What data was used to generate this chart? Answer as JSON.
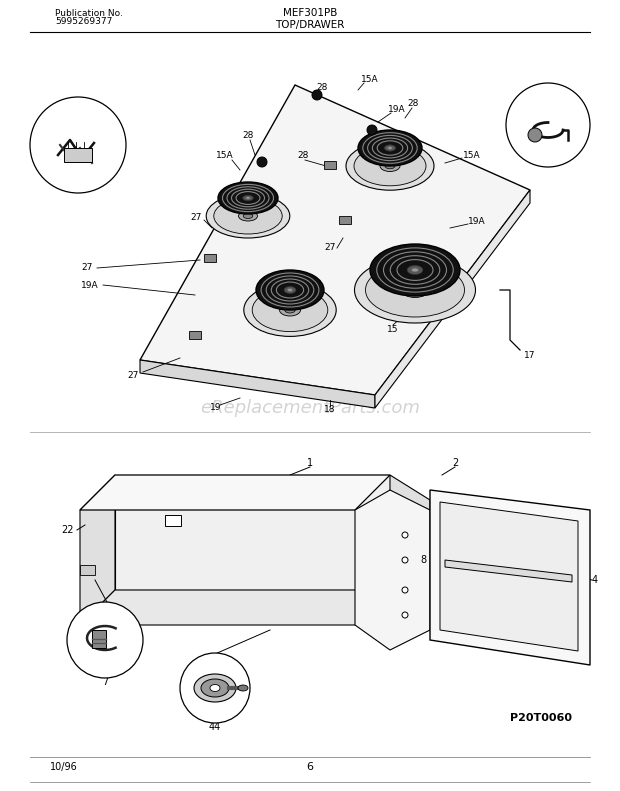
{
  "title_center": "MEF301PB",
  "title_sub": "TOP/DRAWER",
  "pub_no": "Publication No.",
  "pub_num": "5995269377",
  "date": "10/96",
  "page": "6",
  "part_code": "P20T0060",
  "watermark": "eReplacementParts.com",
  "bg_color": "#ffffff",
  "lc": "#000000",
  "wm_color": "#cccccc"
}
